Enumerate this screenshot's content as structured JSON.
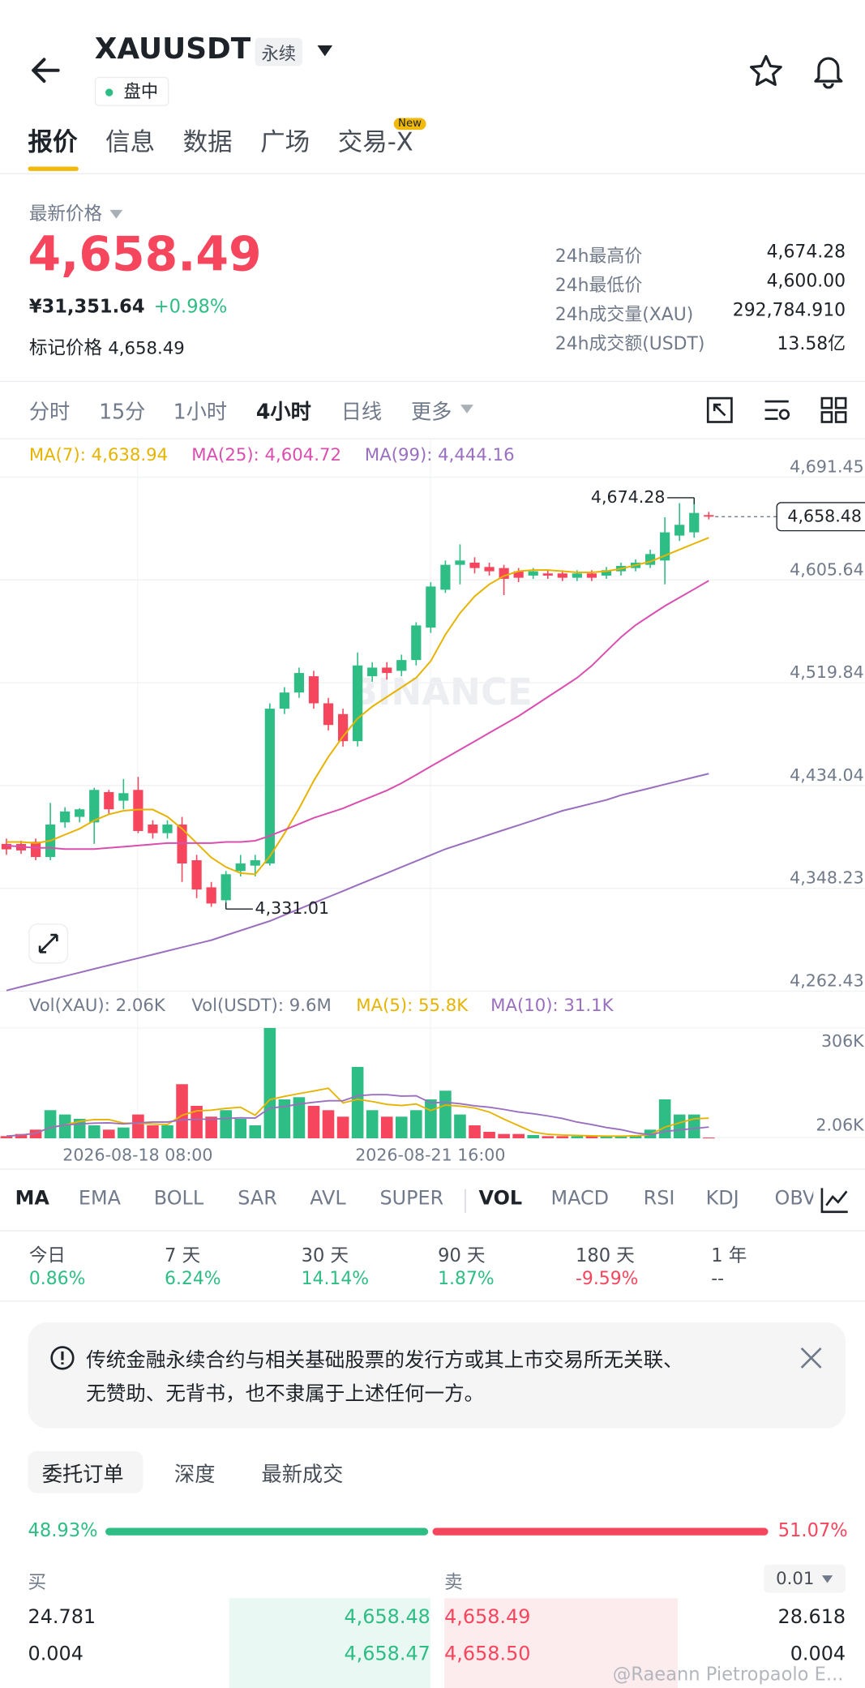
{
  "header": {
    "title": "XAUUSDT",
    "badge": "永续",
    "status": "盘中"
  },
  "tabs": {
    "items": [
      "报价",
      "信息",
      "数据",
      "广场",
      "交易-X"
    ],
    "new_badge": "New"
  },
  "price": {
    "label": "最新价格",
    "last": "4,658.49",
    "cny": "¥31,351.64",
    "change": "+0.98%",
    "mark_label": "标记价格",
    "mark": "4,658.49",
    "stats": [
      {
        "label": "24h最高价",
        "value": "4,674.28"
      },
      {
        "label": "24h最低价",
        "value": "4,600.00"
      },
      {
        "label": "24h成交量(XAU)",
        "value": "292,784.910"
      },
      {
        "label": "24h成交额(USDT)",
        "value": "13.58亿"
      }
    ]
  },
  "intervals": [
    "分时",
    "15分",
    "1小时",
    "4小时",
    "日线",
    "更多"
  ],
  "kline": {
    "watermark": "BINANCE",
    "up_color": "#2ebd85",
    "down_color": "#f6465d",
    "ylim": [
      4262.43,
      4691.45
    ],
    "yticks": [
      {
        "value": 4691.45,
        "label": "4,691.45"
      },
      {
        "value": 4605.64,
        "label": "4,605.64"
      },
      {
        "value": 4519.84,
        "label": "4,519.84"
      },
      {
        "value": 4434.04,
        "label": "4,434.04"
      },
      {
        "value": 4348.23,
        "label": "4,348.23"
      },
      {
        "value": 4262.43,
        "label": "4,262.43"
      }
    ],
    "high_label": "4,674.28",
    "low_label": "4,331.01",
    "last_tag": "4,658.48",
    "candles": [
      [
        4385.3,
        4389.8,
        4376.2,
        4380.8
      ],
      [
        4385.3,
        4388.0,
        4377.0,
        4379.9
      ],
      [
        4387.1,
        4389.8,
        4371.7,
        4374.4
      ],
      [
        4374.4,
        4419.6,
        4371.7,
        4401.5
      ],
      [
        4403.3,
        4416.0,
        4398.8,
        4412.4
      ],
      [
        4407.9,
        4415.1,
        4403.3,
        4414.2
      ],
      [
        4403.3,
        4432.2,
        4385.3,
        4430.4
      ],
      [
        4428.6,
        4430.4,
        4410.6,
        4414.2
      ],
      [
        4421.4,
        4439.5,
        4414.2,
        4427.7
      ],
      [
        4430.4,
        4441.3,
        4394.3,
        4396.1
      ],
      [
        4401.5,
        4405.1,
        4389.8,
        4394.3
      ],
      [
        4394.3,
        4405.1,
        4389.8,
        4401.5
      ],
      [
        4401.5,
        4407.9,
        4353.6,
        4369.0
      ],
      [
        4371.7,
        4376.2,
        4340.1,
        4347.3
      ],
      [
        4349.1,
        4353.6,
        4332.8,
        4335.6
      ],
      [
        4338.3,
        4362.7,
        4331.01,
        4360.0
      ],
      [
        4362.7,
        4376.2,
        4358.2,
        4369.0
      ],
      [
        4367.2,
        4376.2,
        4358.2,
        4371.7
      ],
      [
        4369.0,
        4502.7,
        4367.2,
        4498.2
      ],
      [
        4498.2,
        4516.2,
        4493.7,
        4511.7
      ],
      [
        4511.7,
        4532.5,
        4507.2,
        4528.0
      ],
      [
        4525.3,
        4529.8,
        4498.2,
        4502.7
      ],
      [
        4502.7,
        4507.2,
        4480.1,
        4484.6
      ],
      [
        4493.7,
        4498.2,
        4466.6,
        4471.1
      ],
      [
        4471.1,
        4545.1,
        4466.6,
        4534.3
      ],
      [
        4525.3,
        4537.0,
        4520.7,
        4532.5
      ],
      [
        4532.5,
        4537.0,
        4522.5,
        4528.0
      ],
      [
        4529.8,
        4543.3,
        4525.3,
        4538.8
      ],
      [
        4538.8,
        4570.4,
        4534.3,
        4567.7
      ],
      [
        4565.9,
        4603.8,
        4561.4,
        4600.2
      ],
      [
        4597.5,
        4621.9,
        4594.8,
        4618.3
      ],
      [
        4618.3,
        4635.4,
        4602.0,
        4621.9
      ],
      [
        4620.1,
        4624.6,
        4611.1,
        4615.6
      ],
      [
        4616.5,
        4620.1,
        4609.3,
        4612.9
      ],
      [
        4615.6,
        4618.3,
        4593.0,
        4606.6
      ],
      [
        4612.9,
        4615.6,
        4603.8,
        4607.5
      ],
      [
        4609.3,
        4615.6,
        4606.6,
        4612.9
      ],
      [
        4611.1,
        4613.8,
        4606.6,
        4609.3
      ],
      [
        4611.1,
        4613.8,
        4604.7,
        4607.5
      ],
      [
        4607.5,
        4613.8,
        4604.7,
        4611.1
      ],
      [
        4611.1,
        4613.8,
        4604.7,
        4607.5
      ],
      [
        4609.3,
        4616.5,
        4606.6,
        4613.8
      ],
      [
        4612.9,
        4620.1,
        4609.3,
        4617.4
      ],
      [
        4615.6,
        4622.8,
        4612.9,
        4620.1
      ],
      [
        4618.3,
        4630.9,
        4615.6,
        4627.3
      ],
      [
        4621.9,
        4658.0,
        4602.0,
        4645.4
      ],
      [
        4642.7,
        4669.8,
        4638.2,
        4651.7
      ],
      [
        4645.4,
        4674.28,
        4640.9,
        4661.6
      ],
      [
        4659.8,
        4662.5,
        4656.2,
        4658.48
      ]
    ],
    "ma": [
      {
        "label": "MA(7): 4,638.94",
        "color": "#e6b400",
        "values": [
          4387,
          4387,
          4386,
          4388,
          4393,
          4398,
          4405,
          4410,
          4413,
          4414,
          4414,
          4408,
          4398,
          4386,
          4374,
          4366,
          4361,
          4360,
          4375,
          4394,
          4415,
          4438,
          4458,
          4475,
          4490,
          4500,
          4508,
          4516,
          4524,
          4538,
          4560,
          4578,
          4592,
          4602,
          4609,
          4613,
          4614,
          4614,
          4613,
          4612,
          4612,
          4613,
          4615,
          4618,
          4621,
          4626,
          4631,
          4636,
          4641
        ]
      },
      {
        "label": "MA(25): 4,604.72",
        "color": "#d94fb0",
        "values": [
          4384,
          4383,
          4382,
          4382,
          4381,
          4381,
          4381,
          4382,
          4383,
          4384,
          4385,
          4386,
          4386,
          4386,
          4386,
          4387,
          4387,
          4388,
          4392,
          4397,
          4402,
          4407,
          4411,
          4415,
          4420,
          4425,
          4430,
          4436,
          4443,
          4450,
          4457,
          4464,
          4471,
          4478,
          4485,
          4492,
          4500,
          4508,
          4516,
          4524,
          4534,
          4546,
          4558,
          4568,
          4576,
          4584,
          4591,
          4598,
          4605
        ]
      },
      {
        "label": "MA(99): 4,444.16",
        "color": "#9a6fc0",
        "values": [
          4263,
          4266,
          4269,
          4272,
          4275,
          4278,
          4281,
          4284,
          4287,
          4290,
          4293,
          4296,
          4299,
          4302,
          4305,
          4309,
          4313,
          4317,
          4321,
          4326,
          4331,
          4336,
          4341,
          4346,
          4351,
          4356,
          4361,
          4366,
          4371,
          4376,
          4381,
          4385,
          4389,
          4393,
          4397,
          4401,
          4405,
          4409,
          4413,
          4416,
          4419,
          4422,
          4426,
          4429,
          4432,
          4435,
          4438,
          4441,
          4444
        ]
      }
    ],
    "time_labels": [
      "2026-08-18 08:00",
      "2026-08-21 16:00"
    ],
    "volume": {
      "labels": [
        "Vol(XAU): 2.06K",
        "Vol(USDT): 9.6M"
      ],
      "ylim": [
        0,
        306000
      ],
      "yticks": [
        {
          "value": 306000,
          "label": "306K"
        },
        {
          "value": 2060,
          "label": "2.06K"
        }
      ],
      "values": [
        6000,
        12000,
        24000,
        78000,
        66000,
        54000,
        36000,
        24000,
        30000,
        66000,
        36000,
        36000,
        150000,
        90000,
        60000,
        78000,
        54000,
        36000,
        306000,
        108000,
        114000,
        90000,
        78000,
        60000,
        198000,
        78000,
        60000,
        60000,
        78000,
        108000,
        132000,
        66000,
        36000,
        18000,
        12000,
        12000,
        9000,
        6000,
        6000,
        6000,
        6000,
        6000,
        6000,
        9000,
        24000,
        108000,
        66000,
        66000,
        2060
      ],
      "ma": [
        {
          "label": "MA(5): 55.8K",
          "color": "#e6b400",
          "values": [
            6000,
            9000,
            14000,
            30000,
            37000,
            47000,
            52000,
            52000,
            42000,
            42000,
            40000,
            38000,
            64000,
            76000,
            78000,
            83000,
            86000,
            64000,
            107000,
            116000,
            124000,
            131000,
            139000,
            98000,
            108000,
            102000,
            94000,
            91000,
            95000,
            77000,
            92000,
            89000,
            84000,
            73000,
            53000,
            35000,
            17000,
            11000,
            9000,
            8000,
            7000,
            6000,
            6000,
            7000,
            10000,
            31000,
            43000,
            54000,
            55800
          ]
        },
        {
          "label": "MA(10): 31.1K",
          "color": "#9a6fc0",
          "values": [
            6000,
            9000,
            14000,
            30000,
            37000,
            40000,
            42000,
            43000,
            40000,
            43000,
            45000,
            45000,
            51000,
            53000,
            53000,
            55000,
            57000,
            56000,
            84000,
            88000,
            95000,
            100000,
            104000,
            104000,
            118000,
            121000,
            121000,
            117000,
            118000,
            98000,
            100000,
            96000,
            90000,
            86000,
            80000,
            73000,
            68000,
            62000,
            55000,
            45000,
            38000,
            30000,
            24000,
            15000,
            10000,
            19000,
            23000,
            27000,
            31100
          ]
        }
      ]
    }
  },
  "indicators": [
    "MA",
    "EMA",
    "BOLL",
    "SAR",
    "AVL",
    "SUPER",
    "VOL",
    "MACD",
    "RSI",
    "KDJ",
    "OBV"
  ],
  "performance": [
    {
      "label": "今日",
      "value": "0.86%"
    },
    {
      "label": "7 天",
      "value": "6.24%"
    },
    {
      "label": "30 天",
      "value": "14.14%"
    },
    {
      "label": "90 天",
      "value": "1.87%"
    },
    {
      "label": "180 天",
      "value": "-9.59%"
    },
    {
      "label": "1 年",
      "value": "--"
    }
  ],
  "notice": {
    "lines": [
      "传统金融永续合约与相关基础股票的发行方或其上市交易所无关联、",
      "无赞助、无背书，也不隶属于上述任何一方。"
    ]
  },
  "orderbook": {
    "tabs": [
      "委托订单",
      "深度",
      "最新成交"
    ],
    "buy_ratio": "48.93%",
    "sell_ratio": "51.07%",
    "buy_label": "买",
    "sell_label": "卖",
    "precision": "0.01",
    "rows": [
      [
        "24.781",
        "4,658.48",
        "4,658.49",
        "28.618"
      ],
      [
        "0.004",
        "4,658.47",
        "4,658.50",
        "0.004"
      ]
    ]
  },
  "watermark": "@Raeann Pietropaolo E..."
}
